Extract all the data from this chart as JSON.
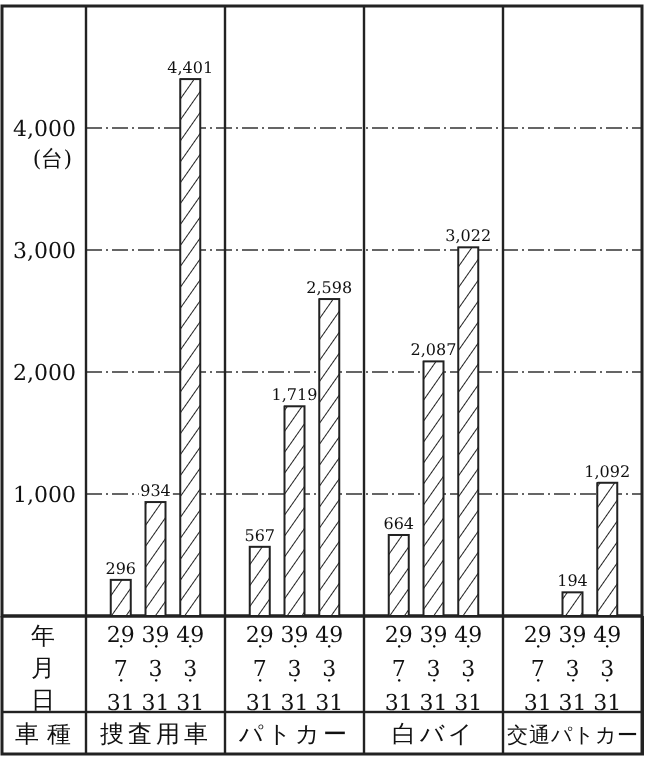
{
  "chart_data": {
    "type": "bar",
    "ylabel": "(台)",
    "categories": [
      "29・7・31",
      "39・3・31",
      "49・3・31",
      "29・7・31",
      "39・3・31",
      "49・3・31",
      "29・7・31",
      "39・3・31",
      "49・3・31",
      "29・7・31",
      "39・3・31",
      "49・3・31"
    ],
    "values": [
      296,
      934,
      4401,
      567,
      1719,
      2598,
      664,
      2087,
      3022,
      null,
      194,
      1092
    ],
    "value_labels": [
      "296",
      "934",
      "4,401",
      "567",
      "1,719",
      "2,598",
      "664",
      "2,087",
      "3,022",
      null,
      "194",
      "1,092"
    ],
    "color": "#222222",
    "ylim": [
      0,
      5000
    ],
    "yticks": [
      {
        "value": 1000,
        "label": "1,000"
      },
      {
        "value": 2000,
        "label": "2,000"
      },
      {
        "value": 3000,
        "label": "3,000"
      },
      {
        "value": 4000,
        "label": "4,000"
      }
    ],
    "grid": "y",
    "annotations": [
      "年月日",
      "車 種",
      "捜査用車",
      "パトカー",
      "白バイ",
      "交通パトカー"
    ]
  }
}
